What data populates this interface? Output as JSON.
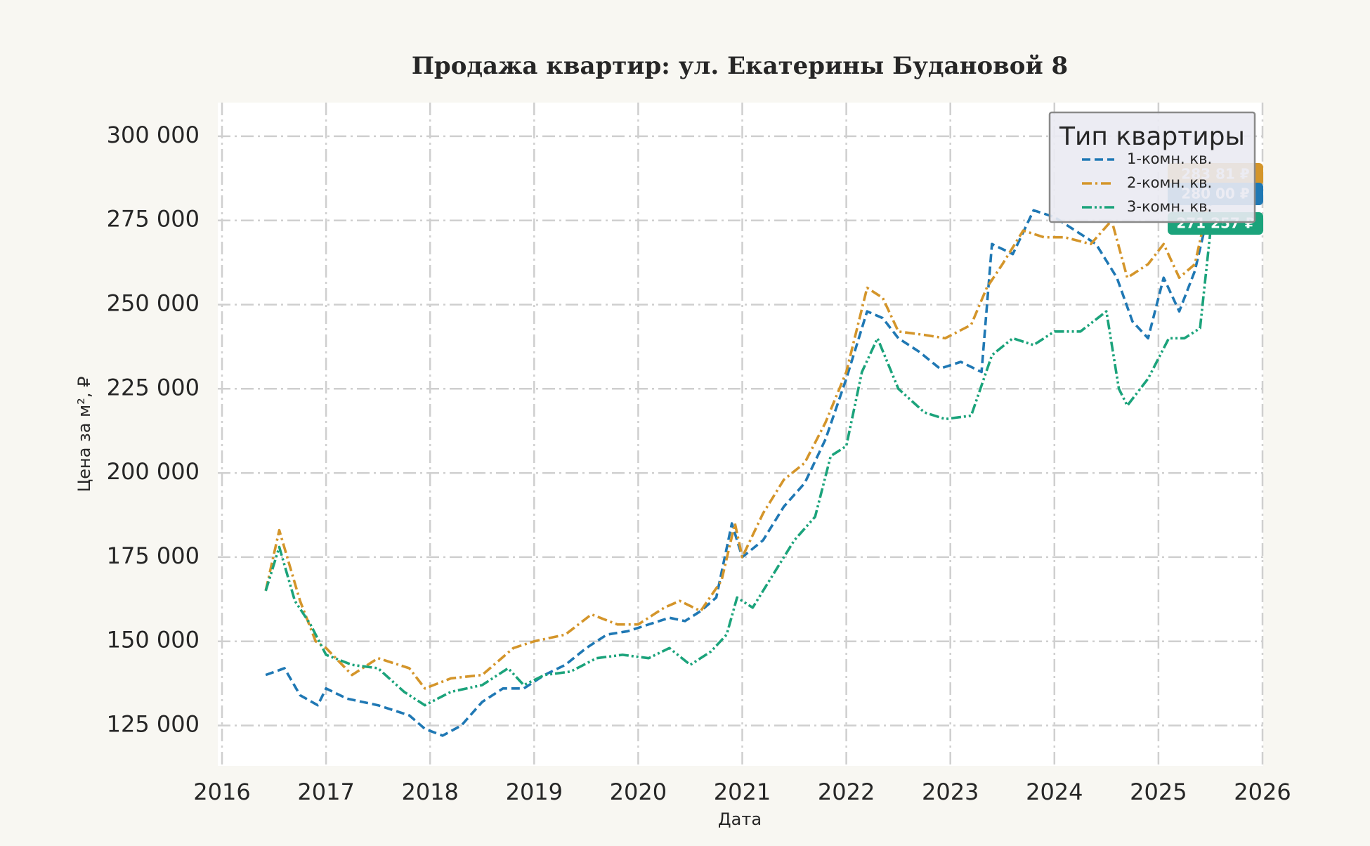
{
  "chart_data": {
    "type": "line",
    "title": "Продажа квартир: ул. Екатерины Будановой 8",
    "xlabel": "Дата",
    "ylabel": "Цена за м², ₽",
    "xlim": [
      2016,
      2026
    ],
    "ylim": [
      113000,
      310000
    ],
    "x_ticks": [
      "2016",
      "2017",
      "2018",
      "2019",
      "2020",
      "2021",
      "2022",
      "2023",
      "2024",
      "2025",
      "2026"
    ],
    "y_ticks": [
      "125 000",
      "150 000",
      "175 000",
      "200 000",
      "225 000",
      "250 000",
      "275 000",
      "300 000"
    ],
    "grid": true,
    "legend": {
      "title": "Тип квартиры",
      "placement": "top-right"
    },
    "series": [
      {
        "name": "1-комн. кв.",
        "color": "#1f78b4",
        "dash": "dashed",
        "x": [
          2016.42,
          2016.6,
          2016.75,
          2016.92,
          2017.0,
          2017.2,
          2017.5,
          2017.8,
          2017.95,
          2018.12,
          2018.3,
          2018.5,
          2018.7,
          2018.9,
          2019.1,
          2019.3,
          2019.5,
          2019.7,
          2019.9,
          2020.1,
          2020.3,
          2020.45,
          2020.6,
          2020.75,
          2020.9,
          2021.0,
          2021.2,
          2021.4,
          2021.6,
          2021.8,
          2022.0,
          2022.2,
          2022.35,
          2022.5,
          2022.7,
          2022.9,
          2023.1,
          2023.3,
          2023.4,
          2023.6,
          2023.8,
          2024.0,
          2024.2,
          2024.4,
          2024.6,
          2024.75,
          2024.9,
          2025.05,
          2025.2,
          2025.35,
          2025.5
        ],
        "y": [
          140000,
          142000,
          134000,
          131000,
          136000,
          133000,
          131000,
          128000,
          124000,
          122000,
          125000,
          132000,
          136000,
          136000,
          140000,
          143000,
          148000,
          152000,
          153000,
          155000,
          157000,
          156000,
          159000,
          163000,
          185000,
          175000,
          180000,
          190000,
          197000,
          210000,
          228000,
          248000,
          246000,
          240000,
          236000,
          231000,
          233000,
          230000,
          268000,
          265000,
          278000,
          276000,
          272000,
          268000,
          258000,
          245000,
          240000,
          258000,
          248000,
          260000,
          280000
        ]
      },
      {
        "name": "2-комн. кв.",
        "color": "#d4952a",
        "dash": "dashdot",
        "x": [
          2016.42,
          2016.55,
          2016.75,
          2016.9,
          2017.0,
          2017.25,
          2017.5,
          2017.8,
          2017.95,
          2018.2,
          2018.5,
          2018.8,
          2019.0,
          2019.3,
          2019.55,
          2019.8,
          2020.0,
          2020.25,
          2020.4,
          2020.6,
          2020.8,
          2020.93,
          2021.0,
          2021.2,
          2021.4,
          2021.6,
          2021.8,
          2022.0,
          2022.2,
          2022.35,
          2022.5,
          2022.75,
          2022.95,
          2023.2,
          2023.35,
          2023.5,
          2023.7,
          2023.9,
          2024.1,
          2024.35,
          2024.55,
          2024.7,
          2024.9,
          2025.05,
          2025.2,
          2025.35,
          2025.5
        ],
        "y": [
          165000,
          183000,
          162000,
          150000,
          148000,
          140000,
          145000,
          142000,
          136000,
          139000,
          140000,
          148000,
          150000,
          152000,
          158000,
          155000,
          155000,
          160000,
          162000,
          159000,
          168000,
          185000,
          175000,
          188000,
          198000,
          203000,
          215000,
          230000,
          255000,
          252000,
          242000,
          241000,
          240000,
          244000,
          255000,
          262000,
          272000,
          270000,
          270000,
          268000,
          275000,
          258000,
          262000,
          268000,
          258000,
          262000,
          283000
        ]
      },
      {
        "name": "3-комн. кв.",
        "color": "#1ba37b",
        "dash": "dashdotdot",
        "x": [
          2016.42,
          2016.55,
          2016.7,
          2016.85,
          2017.0,
          2017.25,
          2017.5,
          2017.75,
          2017.95,
          2018.2,
          2018.5,
          2018.75,
          2018.9,
          2019.1,
          2019.35,
          2019.6,
          2019.85,
          2020.1,
          2020.3,
          2020.5,
          2020.7,
          2020.85,
          2020.95,
          2021.1,
          2021.3,
          2021.5,
          2021.7,
          2021.85,
          2022.0,
          2022.15,
          2022.3,
          2022.5,
          2022.75,
          2022.95,
          2023.2,
          2023.4,
          2023.6,
          2023.8,
          2024.0,
          2024.25,
          2024.5,
          2024.62,
          2024.7,
          2024.9,
          2025.1,
          2025.25,
          2025.4,
          2025.5
        ],
        "y": [
          165000,
          178000,
          162000,
          155000,
          146000,
          143000,
          142000,
          135000,
          131000,
          135000,
          137000,
          142000,
          137000,
          140000,
          141000,
          145000,
          146000,
          145000,
          148000,
          143000,
          147000,
          152000,
          163000,
          160000,
          170000,
          180000,
          187000,
          205000,
          208000,
          230000,
          240000,
          225000,
          218000,
          216000,
          217000,
          235000,
          240000,
          238000,
          242000,
          242000,
          248000,
          225000,
          220000,
          228000,
          240000,
          240000,
          243000,
          272000
        ]
      }
    ],
    "end_labels": [
      {
        "series": "2-комн. кв.",
        "text": "283 81 ₽",
        "color": "#d4952a"
      },
      {
        "series": "1-комн. кв.",
        "text": "280 00 ₽",
        "color": "#1f78b4"
      },
      {
        "series": "3-комн. кв.",
        "text": "271 257 ₽",
        "color": "#1ba37b"
      }
    ]
  }
}
